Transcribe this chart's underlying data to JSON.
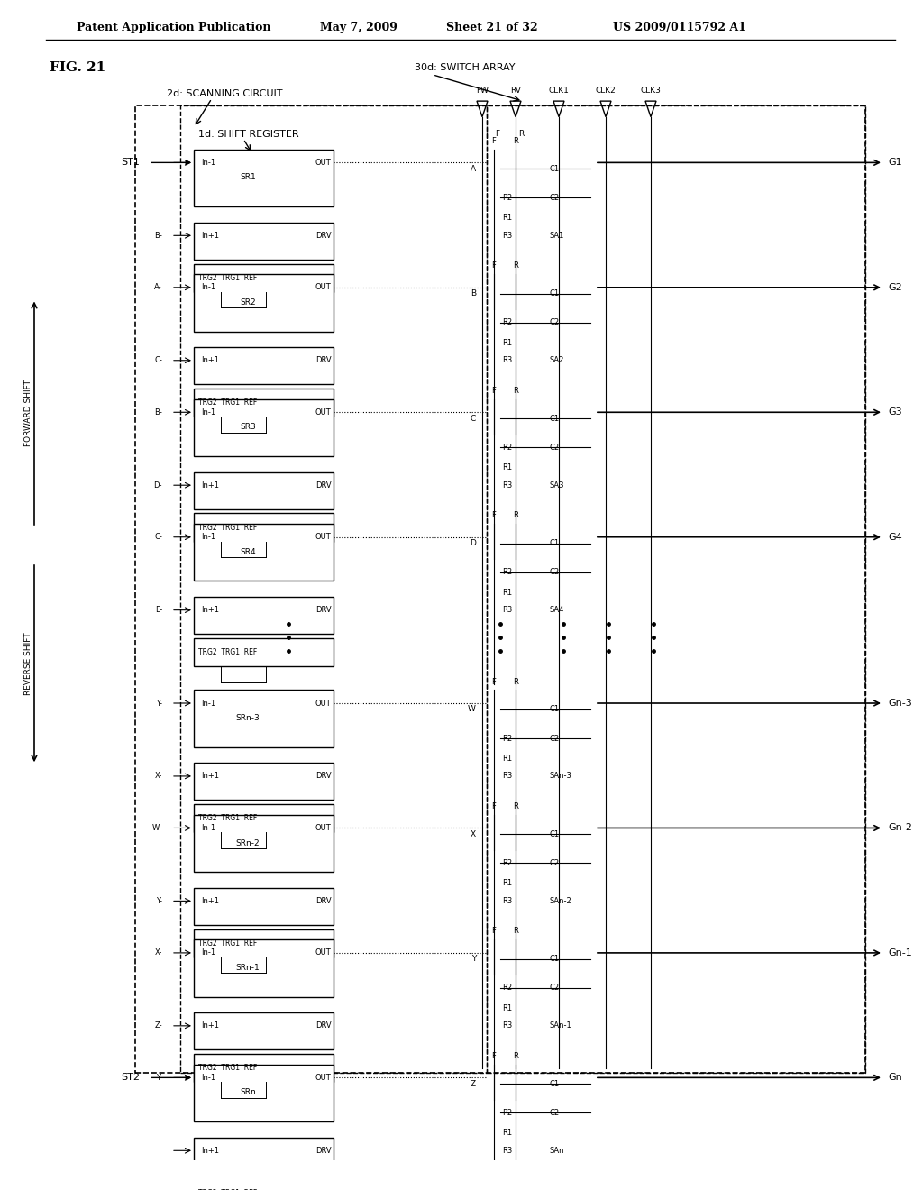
{
  "title_header": "Patent Application Publication",
  "date": "May 7, 2009",
  "sheet": "Sheet 21 of 32",
  "patent_num": "US 2009/0115792 A1",
  "fig_label": "FIG. 21",
  "label_30d": "30d: SWITCH ARRAY",
  "label_2d": "2d: SCANNING CIRCUIT",
  "label_1d": "1d: SHIFT REGISTER",
  "clk_labels": [
    "FW",
    "RV",
    "CLK1",
    "CLK2",
    "CLK3"
  ],
  "stages": [
    {
      "sr": "SR1",
      "in1": "In-1",
      "in2": "In+1",
      "st_in": "ST1",
      "prev_A": null,
      "prev_B": "B",
      "switch": "A",
      "outputs": [
        "C1",
        "C2",
        "SA1"
      ],
      "out": "G1"
    },
    {
      "sr": "SR2",
      "in1": "In-1",
      "in2": "In+1",
      "prev_A": "A",
      "prev_B": "C",
      "switch": "B",
      "outputs": [
        "C1",
        "C2",
        "SA2"
      ],
      "out": "G2"
    },
    {
      "sr": "SR3",
      "in1": "In-1",
      "in2": "In+1",
      "prev_A": "B",
      "prev_B": "D",
      "switch": "C",
      "outputs": [
        "C1",
        "C2",
        "SA3"
      ],
      "out": "G3"
    },
    {
      "sr": "SR4",
      "in1": "In-1",
      "in2": "In+1",
      "prev_A": "C",
      "prev_B": "E",
      "switch": "D",
      "outputs": [
        "C1",
        "C2",
        "SA4"
      ],
      "out": "G4"
    }
  ],
  "stages_bottom": [
    {
      "sr": "SRn-3",
      "in1": "In-1",
      "in2": "In+1",
      "prev_A": "Y",
      "prev_B": "X",
      "switch": "W",
      "outputs": [
        "C1",
        "C2",
        "SAn-3"
      ],
      "out": "Gn-3"
    },
    {
      "sr": "SRn-2",
      "in1": "In-1",
      "in2": "In+1",
      "prev_A": "W",
      "prev_B": "Y",
      "switch": "X",
      "outputs": [
        "C1",
        "C2",
        "SAn-2"
      ],
      "out": "Gn-2"
    },
    {
      "sr": "SRn-1",
      "in1": "In-1",
      "in2": "In+1",
      "prev_A": "X",
      "prev_B": "Z",
      "switch": "Y",
      "outputs": [
        "C1",
        "C2",
        "SAn-1"
      ],
      "out": "Gn-1"
    },
    {
      "sr": "SRn",
      "in1": "In-1",
      "in2": "In+1",
      "st_in": "ST2",
      "prev_A": "Y",
      "prev_B": null,
      "switch": "Z",
      "outputs": [
        "C1",
        "C2",
        "SAn"
      ],
      "out": "Gn"
    }
  ],
  "bg_color": "#ffffff",
  "line_color": "#000000",
  "box_color": "#ffffff",
  "text_color": "#000000",
  "fontsize_header": 9,
  "fontsize_main": 8,
  "fontsize_small": 6.5
}
